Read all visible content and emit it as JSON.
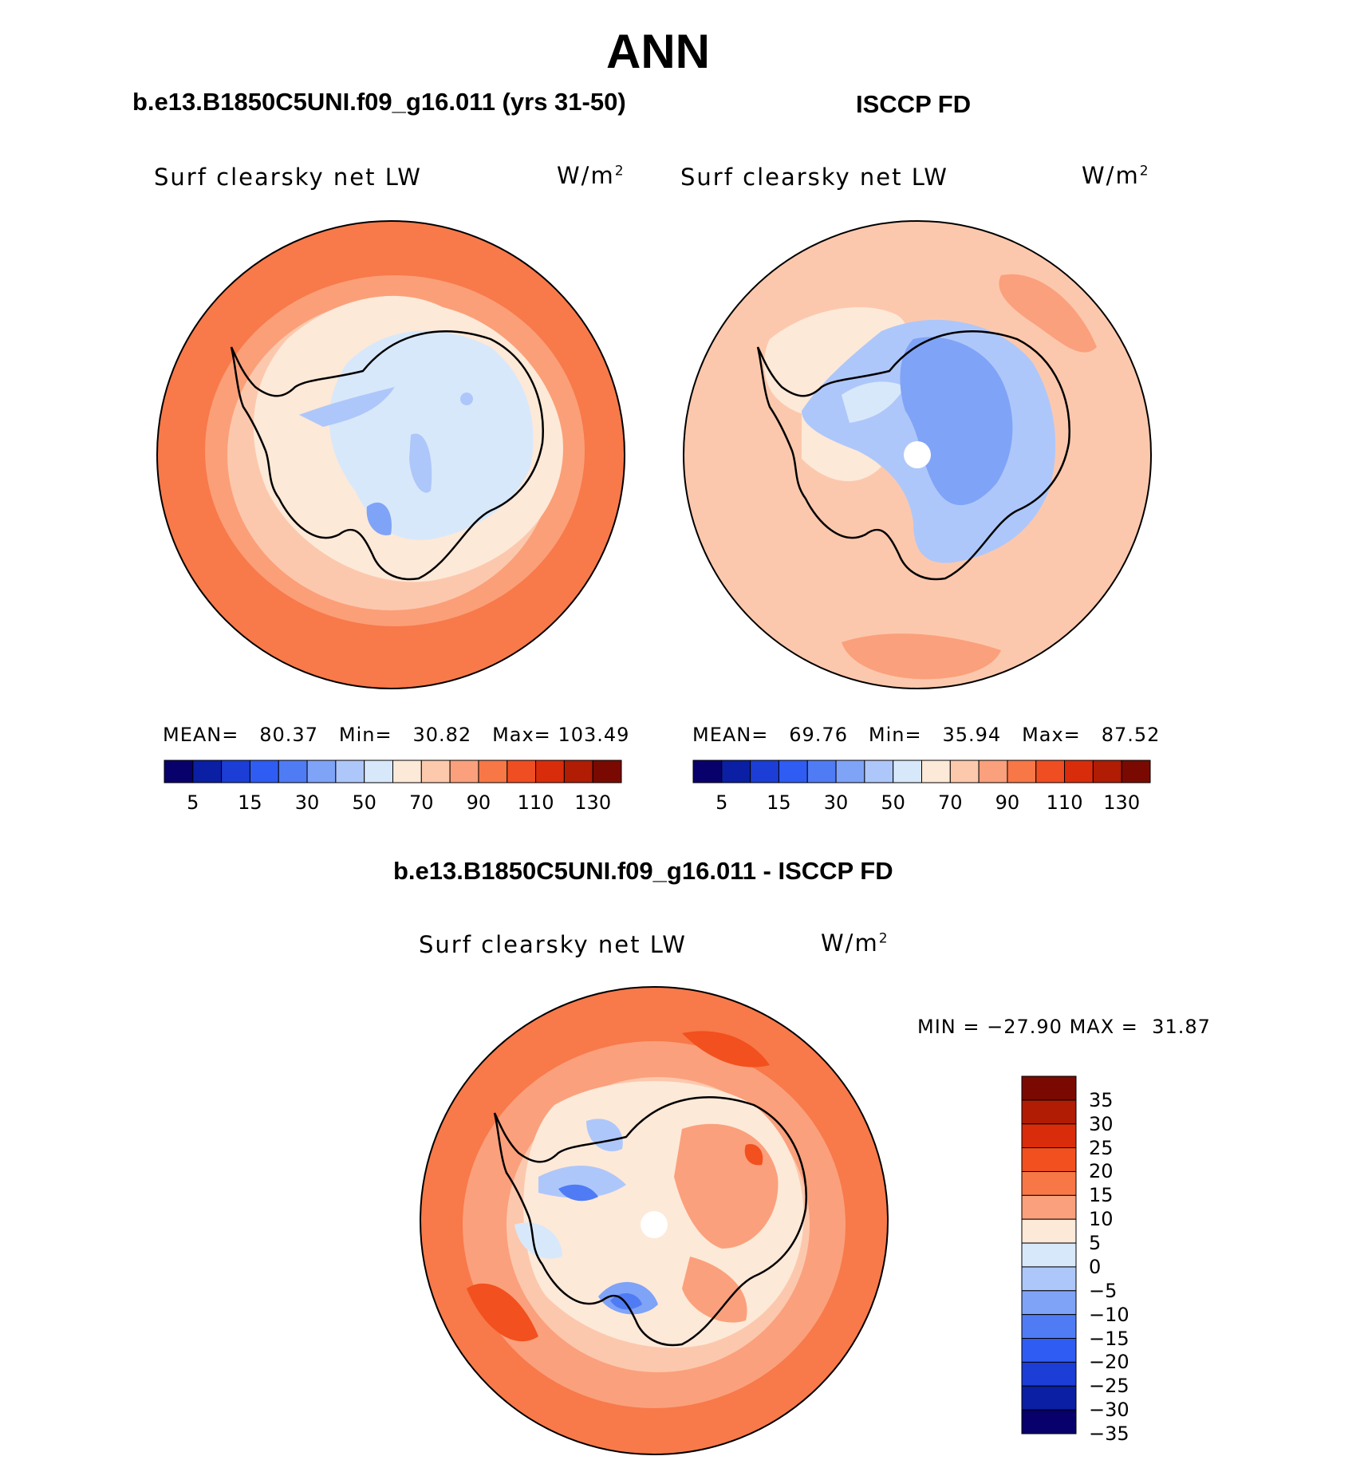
{
  "title": "ANN",
  "panels": {
    "model": {
      "heading": "b.e13.B1850C5UNI.f09_g16.011 (yrs 31-50)",
      "variable": "Surf clearsky net LW",
      "units": "W/m",
      "units_exp": "2",
      "stats": {
        "mean_label": "MEAN=",
        "mean": "80.37",
        "min_label": "Min=",
        "min": "30.82",
        "max_label": "Max=",
        "max": "103.49"
      }
    },
    "obs": {
      "heading": "ISCCP FD",
      "variable": "Surf clearsky net LW",
      "units": "W/m",
      "units_exp": "2",
      "stats": {
        "mean_label": "MEAN=",
        "mean": "69.76",
        "min_label": "Min=",
        "min": "35.94",
        "max_label": "Max=",
        "max": "87.52"
      }
    },
    "diff": {
      "heading": "b.e13.B1850C5UNI.f09_g16.011 - ISCCP FD",
      "variable": "Surf clearsky net LW",
      "units": "W/m",
      "units_exp": "2",
      "stats": {
        "min_label": "MIN =",
        "min": "−27.90",
        "max_label": "MAX =",
        "max": "31.87"
      }
    }
  },
  "colorbar_abs": {
    "colors": [
      "#08006b",
      "#0a1fa3",
      "#1c3ed6",
      "#2f5cf2",
      "#4f7cf5",
      "#7fa3f7",
      "#aec7fa",
      "#d8e8fb",
      "#fde9d8",
      "#fcc9ad",
      "#fba07c",
      "#f87747",
      "#ef4d22",
      "#d92c0b",
      "#b01c04",
      "#7a0a01"
    ],
    "tick_labels": [
      "5",
      "15",
      "30",
      "50",
      "70",
      "90",
      "110",
      "130"
    ]
  },
  "colorbar_diff": {
    "colors": [
      "#7a0a01",
      "#b01c04",
      "#d92c0b",
      "#f2501e",
      "#f87747",
      "#fba07c",
      "#fde9d8",
      "#d8e8fb",
      "#aec7fa",
      "#7fa3f7",
      "#4f7cf5",
      "#2f5cf2",
      "#1c3ed6",
      "#0a1fa3",
      "#08006b"
    ],
    "tick_labels": [
      "35",
      "30",
      "25",
      "20",
      "15",
      "10",
      "5",
      "0",
      "−5",
      "−10",
      "−15",
      "−20",
      "−25",
      "−30",
      "−35"
    ]
  },
  "map_colors": {
    "ocean_model": "#f8794a",
    "ring_mid": "#fb9f78",
    "ring_light": "#fcc8ad",
    "coast_light": "#fde9d8",
    "ice_light": "#d8e8fb",
    "ice_mid": "#aec7fa",
    "ice_dark": "#7fa3f7",
    "ice_deep": "#4f7cf5",
    "diff_hot": "#f2501e"
  }
}
